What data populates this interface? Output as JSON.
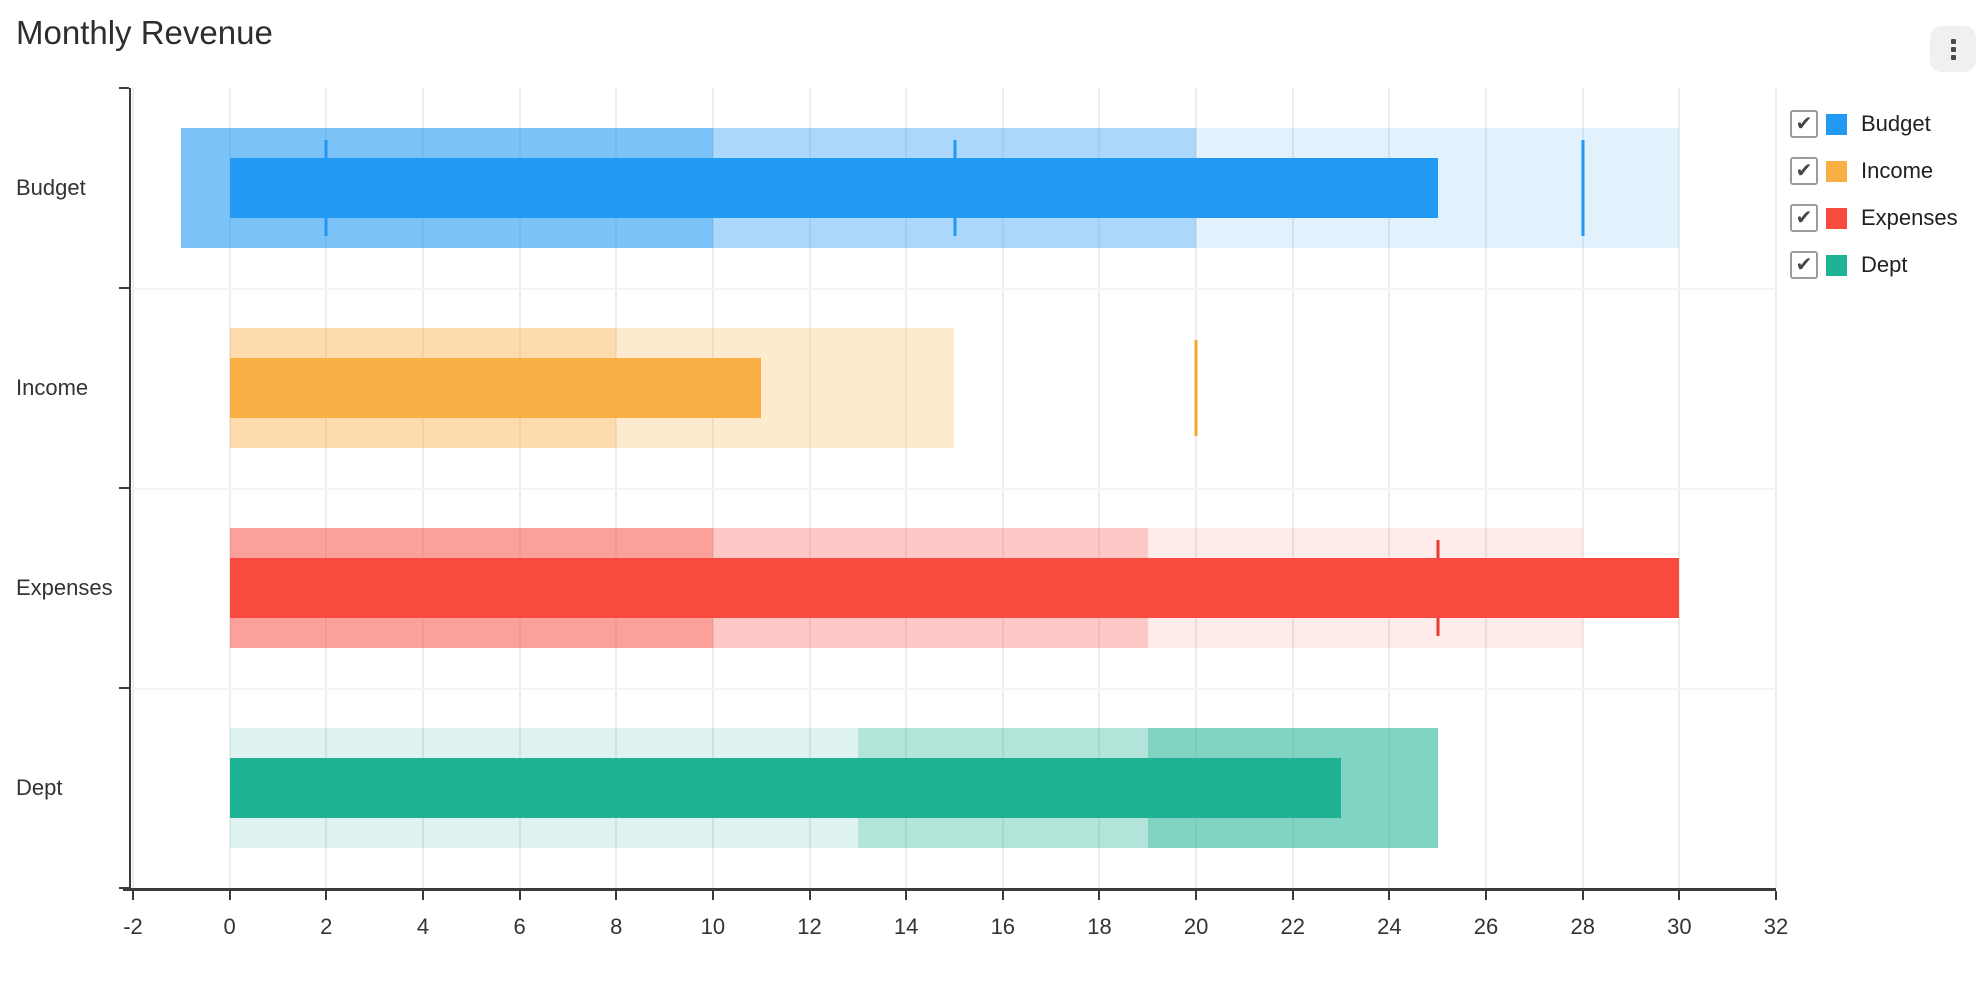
{
  "header": {
    "title": "Monthly Revenue"
  },
  "menu": {
    "icon": "kebab-menu-icon"
  },
  "legend": {
    "position": "right",
    "items": [
      {
        "label": "Budget",
        "color": "#2299F2",
        "checked": true
      },
      {
        "label": "Income",
        "color": "#FAAF44",
        "checked": true
      },
      {
        "label": "Expenses",
        "color": "#F84A3E",
        "checked": true
      },
      {
        "label": "Dept",
        "color": "#1FB293",
        "checked": true
      }
    ]
  },
  "chart_data": {
    "type": "bar",
    "subtype": "bullet",
    "orientation": "horizontal",
    "title": "Monthly Revenue",
    "grid": true,
    "x_axis": {
      "min": -2,
      "max": 32,
      "step": 2,
      "tick_labels": [
        "-2",
        "0",
        "2",
        "4",
        "6",
        "8",
        "10",
        "12",
        "14",
        "16",
        "18",
        "20",
        "22",
        "24",
        "26",
        "28",
        "30",
        "32"
      ]
    },
    "categories": [
      "Budget",
      "Income",
      "Expenses",
      "Dept"
    ],
    "series": [
      {
        "name": "Budget",
        "color": "#2299F2",
        "target_color": "#2196F3",
        "measure_start": 0,
        "measure": 25,
        "ranges": [
          {
            "start": -1,
            "end": 10,
            "alpha": 0.6
          },
          {
            "start": 10,
            "end": 20,
            "alpha": 0.38
          },
          {
            "start": 20,
            "end": 30,
            "alpha": 0.13
          }
        ],
        "targets": [
          2,
          15,
          28
        ]
      },
      {
        "name": "Income",
        "color": "#FAAF44",
        "target_color": "#F5A32E",
        "measure_start": 0,
        "measure": 11,
        "ranges": [
          {
            "start": 0,
            "end": 8,
            "alpha": 0.45
          },
          {
            "start": 8,
            "end": 15,
            "alpha": 0.26
          }
        ],
        "targets": [
          20
        ]
      },
      {
        "name": "Expenses",
        "color": "#F84A3E",
        "target_color": "#EA3B2F",
        "measure_start": 0,
        "measure": 30,
        "ranges": [
          {
            "start": 0,
            "end": 10,
            "alpha": 0.52
          },
          {
            "start": 10,
            "end": 19,
            "alpha": 0.3
          },
          {
            "start": 19,
            "end": 28,
            "alpha": 0.11
          }
        ],
        "targets": [
          25
        ]
      },
      {
        "name": "Dept",
        "color": "#1FB293",
        "target_color": "#1FB293",
        "measure_start": 0,
        "measure": 23,
        "ranges": [
          {
            "start": 0,
            "end": 13,
            "alpha": 0.14
          },
          {
            "start": 13,
            "end": 19,
            "alpha": 0.34
          },
          {
            "start": 19,
            "end": 25,
            "alpha": 0.56
          }
        ],
        "targets": []
      }
    ]
  }
}
